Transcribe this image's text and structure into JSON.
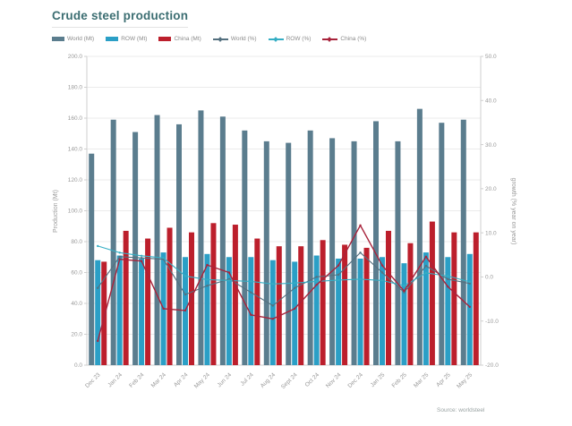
{
  "title": "Crude steel production",
  "source": "Source: worldsteel",
  "colors": {
    "title": "#3c6e72",
    "world_bar": "#5b7d8e",
    "row_bar": "#2b9fc6",
    "china_bar": "#bc1f2c",
    "world_line": "#54707f",
    "row_line": "#35aec4",
    "china_line": "#a8233b",
    "grid": "#ebebeb",
    "axis": "#cfcfcf",
    "tick_text": "#9a9a9a"
  },
  "legend": [
    {
      "label": "World (Mt)",
      "type": "bar",
      "color": "#5b7d8e"
    },
    {
      "label": "ROW (Mt)",
      "type": "bar",
      "color": "#2b9fc6"
    },
    {
      "label": "China (Mt)",
      "type": "bar",
      "color": "#bc1f2c"
    },
    {
      "label": "World (%)",
      "type": "line",
      "color": "#54707f"
    },
    {
      "label": "ROW (%)",
      "type": "line",
      "color": "#35aec4"
    },
    {
      "label": "China (%)",
      "type": "line",
      "color": "#a8233b"
    }
  ],
  "chart_data": {
    "type": "bar",
    "subtype": "grouped bars with overlaid lines (dual axis)",
    "categories": [
      "Dec 23",
      "Jan 24",
      "Feb 24",
      "Mar 24",
      "Apr 24",
      "May 24",
      "Jun 24",
      "Jul 24",
      "Aug 24",
      "Sept 24",
      "Oct 24",
      "Nov 24",
      "Dec 24",
      "Jan 25",
      "Feb 25",
      "Mar 25",
      "Apr 25",
      "May 25"
    ],
    "series": [
      {
        "name": "World (Mt)",
        "type": "bar",
        "axis": "left",
        "color": "#5b7d8e",
        "values": [
          137,
          159,
          151,
          162,
          156,
          165,
          161,
          152,
          145,
          144,
          152,
          147,
          145,
          158,
          145,
          166,
          157,
          159
        ]
      },
      {
        "name": "ROW (Mt)",
        "type": "bar",
        "axis": "left",
        "color": "#2b9fc6",
        "values": [
          68,
          71,
          69,
          73,
          70,
          72,
          70,
          70,
          68,
          67,
          71,
          69,
          69,
          70,
          66,
          73,
          70,
          72
        ]
      },
      {
        "name": "China (Mt)",
        "type": "bar",
        "axis": "left",
        "color": "#bc1f2c",
        "values": [
          67,
          87,
          82,
          89,
          86,
          92,
          91,
          82,
          77,
          77,
          81,
          78,
          76,
          87,
          79,
          93,
          86,
          86
        ]
      },
      {
        "name": "World (%)",
        "type": "line",
        "axis": "right",
        "color": "#54707f",
        "values": [
          -2.5,
          4.6,
          4.3,
          4.0,
          -4.0,
          -2.0,
          -0.5,
          -3.5,
          -6.5,
          -2.5,
          0.0,
          0.5,
          5.5,
          1.0,
          -3.5,
          2.5,
          -0.5,
          -1.5
        ]
      },
      {
        "name": "ROW (%)",
        "type": "line",
        "axis": "right",
        "color": "#35aec4",
        "values": [
          7.0,
          5.5,
          4.8,
          4.3,
          0.2,
          -0.6,
          -0.8,
          -1.0,
          -1.6,
          -1.4,
          -1.0,
          -0.7,
          -0.5,
          -0.8,
          -2.0,
          0.9,
          0.2,
          -1.1
        ]
      },
      {
        "name": "China (%)",
        "type": "line",
        "axis": "right",
        "color": "#a8233b",
        "values": [
          -14.5,
          4.0,
          3.6,
          -7.2,
          -7.6,
          2.7,
          1.0,
          -8.6,
          -9.5,
          -7.2,
          -1.8,
          2.6,
          11.7,
          2.6,
          -3.2,
          4.6,
          -2.2,
          -6.8
        ]
      }
    ],
    "left_axis": {
      "label": "Production (Mt)",
      "min": 0,
      "max": 200,
      "step": 20,
      "tick_format": "one-decimal"
    },
    "right_axis": {
      "label": "growth (% year on year)",
      "min": -20,
      "max": 50,
      "step": 10,
      "tick_format": "one-decimal"
    },
    "grid": true,
    "legend_position": "top",
    "title": "Crude steel production",
    "xlabel": "",
    "ylabel": "Production (Mt)"
  }
}
